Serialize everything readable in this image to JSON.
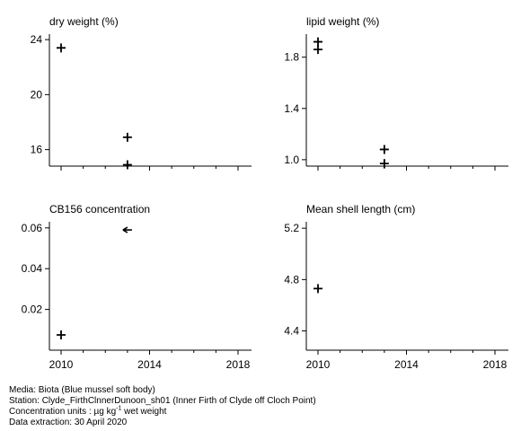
{
  "chart_data": [
    {
      "type": "scatter",
      "title": "dry weight (%)",
      "xlim": [
        2010,
        2018
      ],
      "ylim": [
        14.8,
        24.4
      ],
      "xticks": [
        2010,
        2014,
        2018
      ],
      "yticks": [
        16,
        20,
        24
      ],
      "xtick_labels_shown": false,
      "points": [
        {
          "x": 2010,
          "y": 23.4
        },
        {
          "x": 2013,
          "y": 16.9
        },
        {
          "x": 2013,
          "y": 14.9
        }
      ]
    },
    {
      "type": "scatter",
      "title": "lipid weight (%)",
      "xlim": [
        2010,
        2018
      ],
      "ylim": [
        0.95,
        1.98
      ],
      "xticks": [
        2010,
        2014,
        2018
      ],
      "yticks": [
        1.0,
        1.4,
        1.8
      ],
      "ytick_labels": [
        "1.0",
        "1.4",
        "1.8"
      ],
      "xtick_labels_shown": false,
      "points": [
        {
          "x": 2010,
          "y": 1.92
        },
        {
          "x": 2010,
          "y": 1.86
        },
        {
          "x": 2013,
          "y": 1.08
        },
        {
          "x": 2013,
          "y": 0.97
        }
      ]
    },
    {
      "type": "scatter",
      "title": "CB156 concentration",
      "xlim": [
        2010,
        2018
      ],
      "ylim": [
        0.0,
        0.063
      ],
      "xticks": [
        2010,
        2014,
        2018
      ],
      "yticks": [
        0.02,
        0.04,
        0.06
      ],
      "ytick_labels": [
        "0.02",
        "0.04",
        "0.06"
      ],
      "xtick_labels_shown": true,
      "points": [
        {
          "x": 2010,
          "y": 0.0075
        },
        {
          "x": 2013,
          "y": 0.059,
          "marker": "arrow-left"
        }
      ]
    },
    {
      "type": "scatter",
      "title": "Mean shell length (cm)",
      "xlim": [
        2010,
        2018
      ],
      "ylim": [
        4.25,
        5.25
      ],
      "xticks": [
        2010,
        2014,
        2018
      ],
      "yticks": [
        4.4,
        4.8,
        5.2
      ],
      "ytick_labels": [
        "4.4",
        "4.8",
        "5.2"
      ],
      "xtick_labels_shown": true,
      "points": [
        {
          "x": 2010,
          "y": 4.73
        }
      ]
    }
  ],
  "footer": {
    "media": "Media: Biota (Blue mussel soft body)",
    "station": "Station: Clyde_FirthClnnerDunoon_sh01 (Inner Firth of Clyde off Cloch Point)",
    "units_prefix": "Concentration units : µg kg",
    "units_sup": "-1",
    "units_suffix": " wet weight",
    "extraction": "Data extraction: 30 April 2020"
  }
}
